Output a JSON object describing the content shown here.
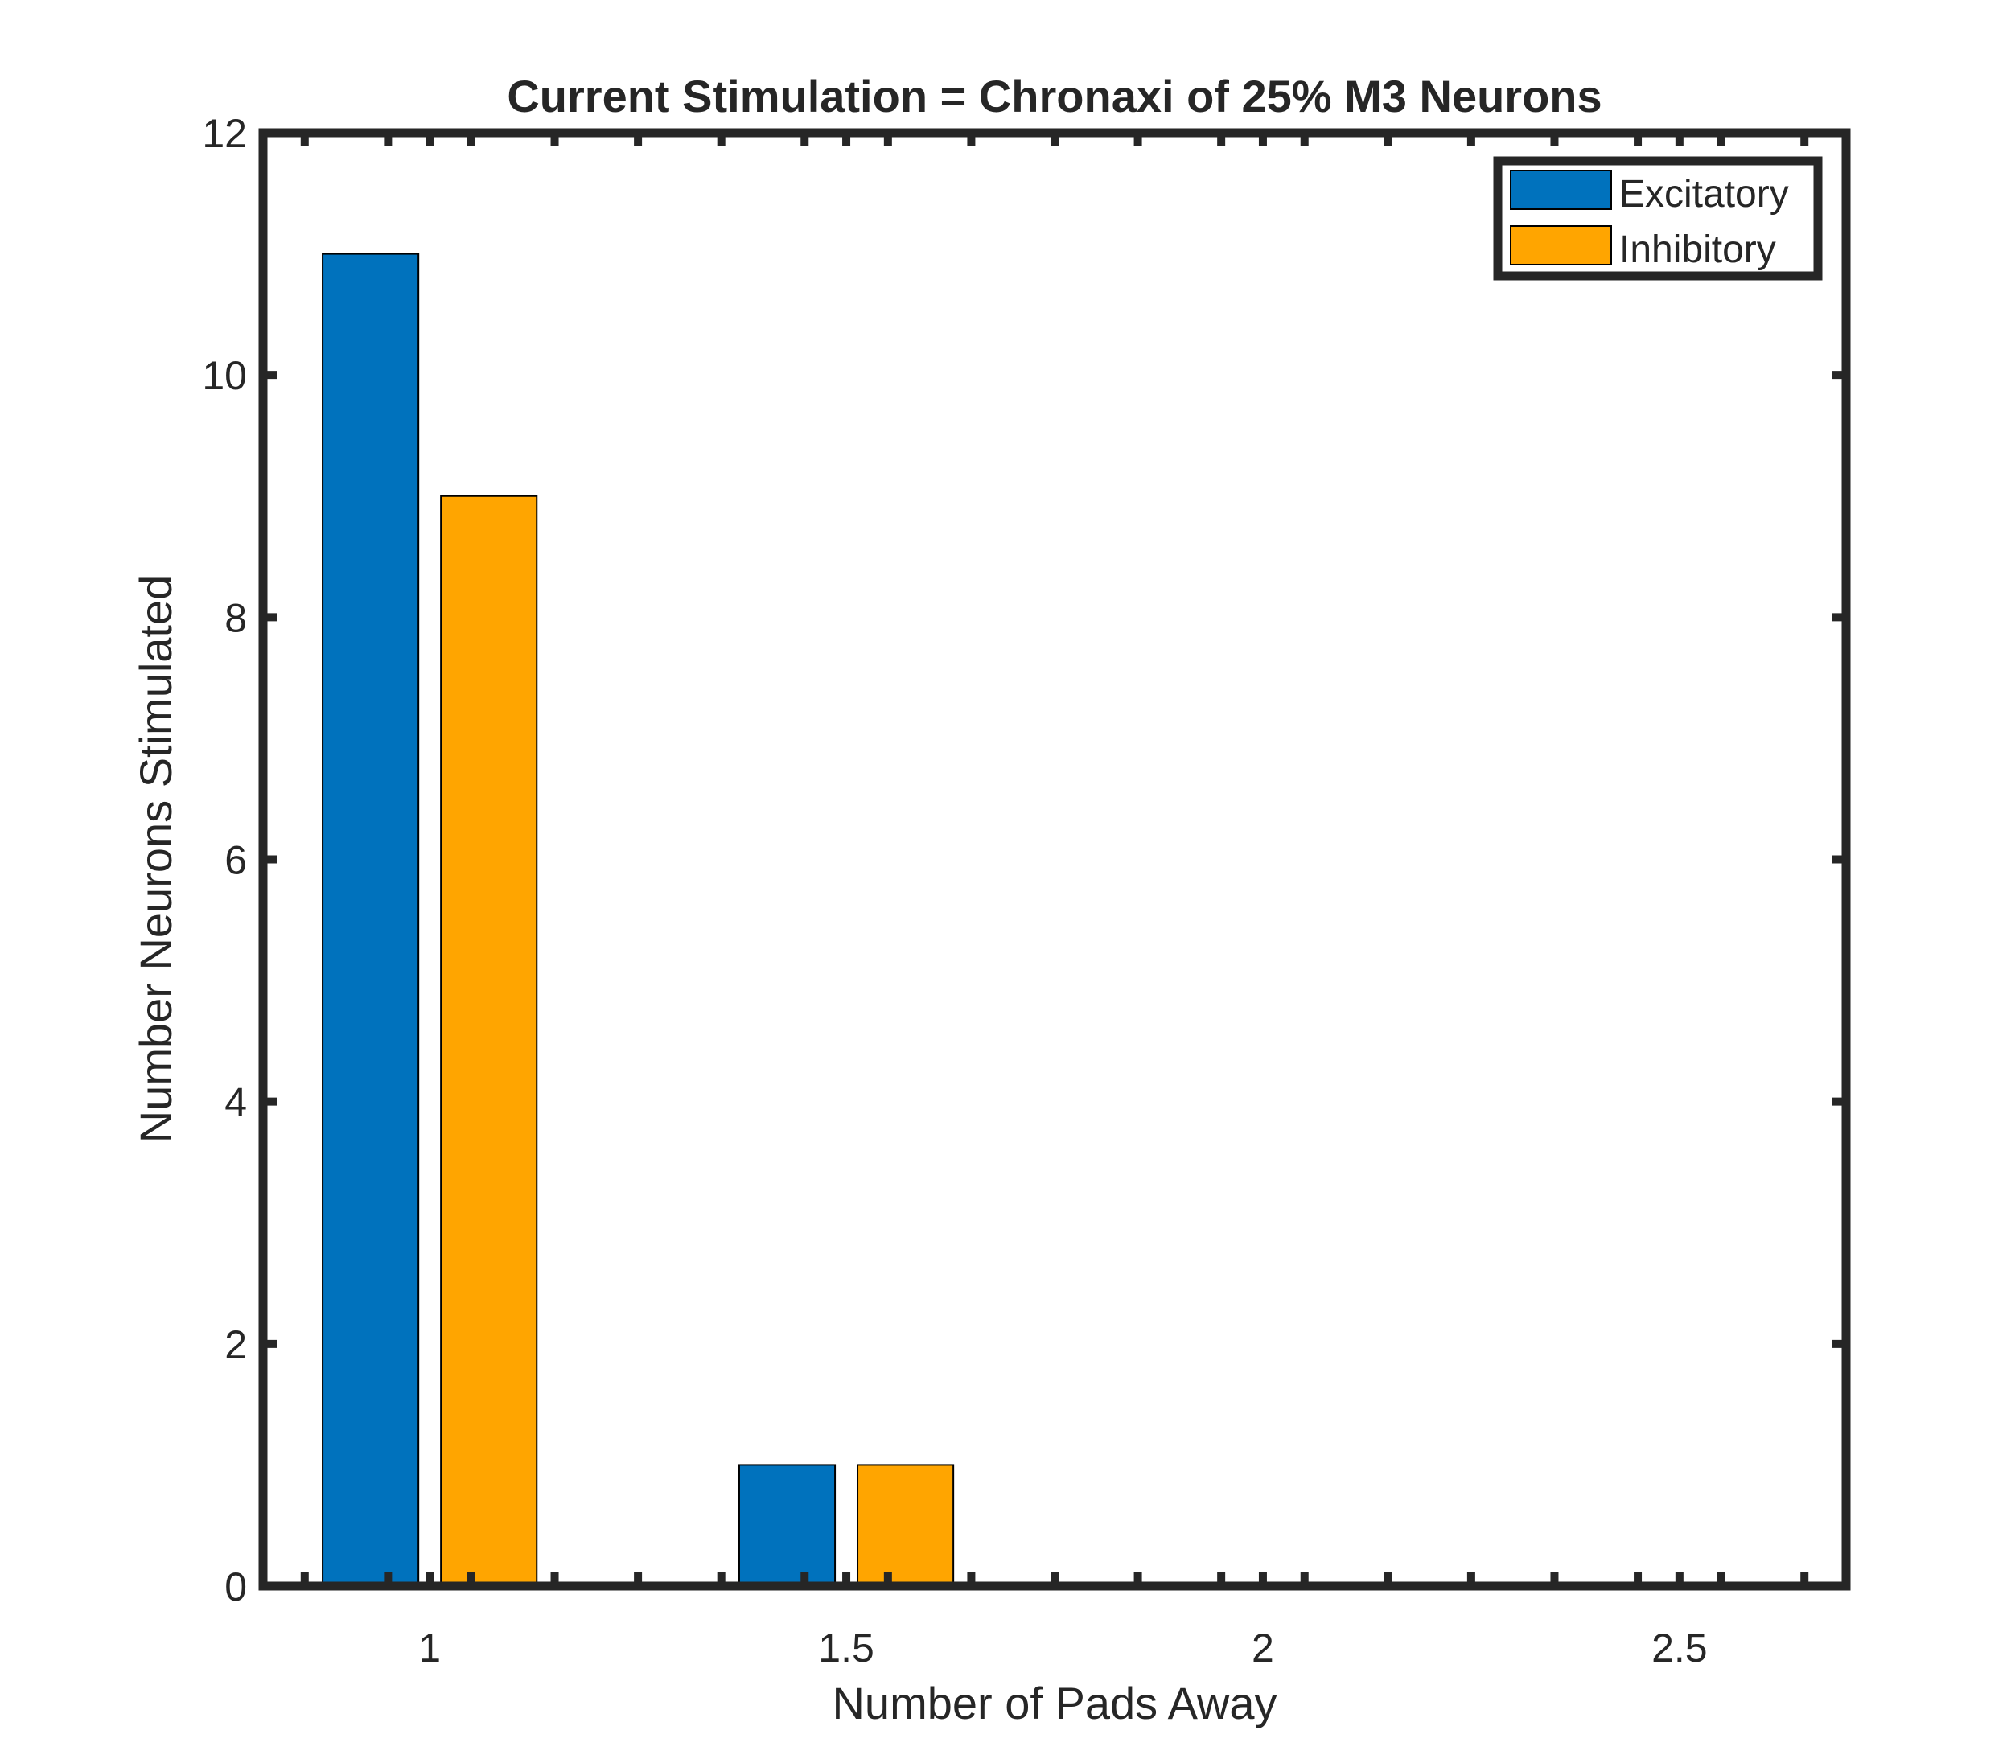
{
  "chart_data": {
    "type": "bar",
    "title": "Current Stimulation = Chronaxi of 25% M3 Neurons",
    "xlabel": "Number of Pads Away",
    "ylabel": "Number Neurons Stimulated",
    "categories": [
      1,
      1.5,
      2,
      2.5
    ],
    "xlim": [
      0.8,
      2.7
    ],
    "ylim": [
      0,
      12
    ],
    "x_ticks": [
      1,
      1.5,
      2,
      2.5
    ],
    "x_tick_labels": [
      "1",
      "1.5",
      "2",
      "2.5"
    ],
    "x_minor_ticks": [
      0.85,
      0.95,
      1.05,
      1.15,
      1.25,
      1.35,
      1.45,
      1.55,
      1.65,
      1.75,
      1.85,
      1.95,
      2.05,
      2.15,
      2.25,
      2.35,
      2.45,
      2.55,
      2.65
    ],
    "y_ticks": [
      0,
      2,
      4,
      6,
      8,
      10,
      12
    ],
    "y_tick_labels": [
      "0",
      "2",
      "4",
      "6",
      "8",
      "10",
      "12"
    ],
    "grid": false,
    "legend_position": "top-right",
    "series": [
      {
        "name": "Excitatory",
        "color": "#0072bd",
        "values": [
          11,
          1,
          0,
          0
        ]
      },
      {
        "name": "Inhibitory",
        "color": "#ffa500",
        "values": [
          9,
          1,
          0,
          0
        ]
      }
    ]
  }
}
